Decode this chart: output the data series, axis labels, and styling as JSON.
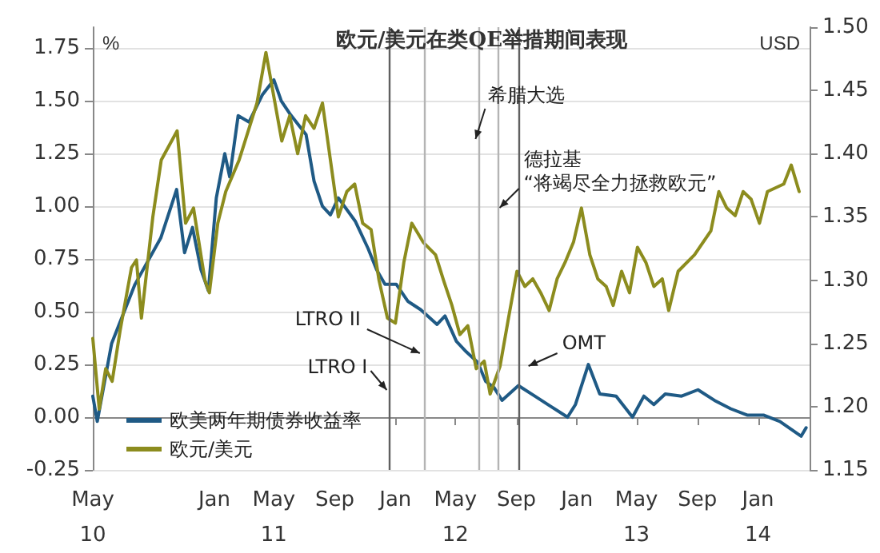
{
  "chart_data": {
    "type": "line",
    "title": "欧元/美元在类QE举措期间表现",
    "ylabel": "%",
    "y2label": "USD",
    "xlim": [
      "2010-05-01",
      "2014-04-15"
    ],
    "xticks": [
      {
        "value": "2010-05-01",
        "label": "May\n10"
      },
      {
        "value": "2011-01-01",
        "label": "Jan"
      },
      {
        "value": "2011-05-01",
        "label": "May\n11"
      },
      {
        "value": "2011-09-01",
        "label": "Sep"
      },
      {
        "value": "2012-01-01",
        "label": "Jan"
      },
      {
        "value": "2012-05-01",
        "label": "May\n12"
      },
      {
        "value": "2012-09-01",
        "label": "Sep"
      },
      {
        "value": "2013-01-01",
        "label": "Jan"
      },
      {
        "value": "2013-05-01",
        "label": "May\n13"
      },
      {
        "value": "2013-09-01",
        "label": "Sep"
      },
      {
        "value": "2014-01-01",
        "label": "Jan\n14"
      }
    ],
    "ylim": [
      -0.25,
      1.85
    ],
    "yticks": [
      {
        "value": -0.25,
        "label": "-0.25"
      },
      {
        "value": 0,
        "label": "0.00"
      },
      {
        "value": 0.25,
        "label": "0.25"
      },
      {
        "value": 0.5,
        "label": "0.50"
      },
      {
        "value": 0.75,
        "label": "0.75"
      },
      {
        "value": 1,
        "label": "1.00"
      },
      {
        "value": 1.25,
        "label": "1.25"
      },
      {
        "value": 1.5,
        "label": "1.50"
      },
      {
        "value": 1.75,
        "label": "1.75"
      }
    ],
    "y2lim": [
      1.15,
      1.5
    ],
    "y2ticks": [
      {
        "value": 1.15,
        "label": "1.15"
      },
      {
        "value": 1.2,
        "label": "1.20"
      },
      {
        "value": 1.25,
        "label": "1.25"
      },
      {
        "value": 1.3,
        "label": "1.30"
      },
      {
        "value": 1.35,
        "label": "1.35"
      },
      {
        "value": 1.4,
        "label": "1.40"
      },
      {
        "value": 1.45,
        "label": "1.45"
      },
      {
        "value": 1.5,
        "label": "1.50"
      }
    ],
    "grid": "y",
    "legend": "bottom left",
    "marker": "none",
    "line_style": "solid",
    "series": [
      {
        "name": "欧美两年期债券收益率",
        "color": "#1f5a85",
        "x": [
          "2010-05-01",
          "2010-05-10",
          "2010-06-08",
          "2010-07-25",
          "2010-09-15",
          "2010-10-17",
          "2010-11-02",
          "2010-11-18",
          "2010-12-05",
          "2010-12-20",
          "2011-01-05",
          "2011-01-22",
          "2011-02-01",
          "2011-02-18",
          "2011-03-12",
          "2011-04-08",
          "2011-05-01",
          "2011-05-16",
          "2011-06-02",
          "2011-07-05",
          "2011-07-21",
          "2011-08-07",
          "2011-08-23",
          "2011-09-08",
          "2011-10-12",
          "2011-11-07",
          "2011-11-24",
          "2011-12-11",
          "2012-01-03",
          "2012-01-26",
          "2012-02-21",
          "2012-03-25",
          "2012-04-10",
          "2012-05-03",
          "2012-05-23",
          "2012-06-15",
          "2012-07-01",
          "2012-07-18",
          "2012-08-03",
          "2012-09-05",
          "2012-10-08",
          "2012-11-10",
          "2012-12-13",
          "2012-12-29",
          "2013-01-24",
          "2013-02-16",
          "2013-03-21",
          "2013-04-23",
          "2013-05-16",
          "2013-06-05",
          "2013-06-28",
          "2013-07-31",
          "2013-09-02",
          "2013-10-05",
          "2013-11-07",
          "2013-12-10",
          "2014-01-12",
          "2014-02-14",
          "2014-03-29",
          "2014-04-08"
        ],
        "values": [
          0.1,
          -0.02,
          0.35,
          0.63,
          0.85,
          1.08,
          0.78,
          0.9,
          0.7,
          0.6,
          1.04,
          1.25,
          1.14,
          1.43,
          1.4,
          1.53,
          1.6,
          1.5,
          1.44,
          1.34,
          1.12,
          1.0,
          0.96,
          1.04,
          0.93,
          0.8,
          0.7,
          0.63,
          0.63,
          0.55,
          0.51,
          0.44,
          0.48,
          0.36,
          0.31,
          0.26,
          0.17,
          0.14,
          0.08,
          0.15,
          0.1,
          0.05,
          0.0,
          0.06,
          0.25,
          0.11,
          0.1,
          0.0,
          0.1,
          0.06,
          0.11,
          0.1,
          0.13,
          0.08,
          0.04,
          0.01,
          0.01,
          -0.02,
          -0.09,
          -0.05
        ]
      },
      {
        "name": "欧元/美元",
        "color": "#8c8c1e",
        "axis": "y2",
        "x": [
          "2010-05-01",
          "2010-05-14",
          "2010-05-27",
          "2010-06-09",
          "2010-06-25",
          "2010-07-18",
          "2010-07-28",
          "2010-08-07",
          "2010-08-30",
          "2010-09-16",
          "2010-10-18",
          "2010-11-04",
          "2010-11-20",
          "2010-12-13",
          "2010-12-22",
          "2011-01-08",
          "2011-01-24",
          "2011-02-20",
          "2011-03-12",
          "2011-03-28",
          "2011-04-15",
          "2011-05-01",
          "2011-05-17",
          "2011-06-02",
          "2011-06-18",
          "2011-07-04",
          "2011-07-21",
          "2011-08-07",
          "2011-08-23",
          "2011-09-08",
          "2011-09-25",
          "2011-10-11",
          "2011-10-27",
          "2011-11-13",
          "2011-11-29",
          "2011-12-16",
          "2012-01-01",
          "2012-01-18",
          "2012-02-03",
          "2012-02-26",
          "2012-03-22",
          "2012-04-07",
          "2012-04-24",
          "2012-05-10",
          "2012-05-26",
          "2012-06-12",
          "2012-06-28",
          "2012-07-10",
          "2012-07-30",
          "2012-08-16",
          "2012-09-02",
          "2012-09-18",
          "2012-10-04",
          "2012-10-20",
          "2012-11-06",
          "2012-11-22",
          "2012-12-08",
          "2012-12-25",
          "2013-01-10",
          "2013-01-27",
          "2013-02-12",
          "2013-03-01",
          "2013-03-15",
          "2013-04-01",
          "2013-04-17",
          "2013-05-03",
          "2013-05-20",
          "2013-06-05",
          "2013-06-22",
          "2013-07-05",
          "2013-07-24",
          "2013-08-26",
          "2013-09-28",
          "2013-10-14",
          "2013-10-30",
          "2013-11-16",
          "2013-12-02",
          "2013-12-18",
          "2014-01-04",
          "2014-01-20",
          "2014-02-22",
          "2014-03-09",
          "2014-03-25"
        ],
        "values": [
          1.254,
          1.198,
          1.23,
          1.22,
          1.26,
          1.31,
          1.316,
          1.27,
          1.35,
          1.395,
          1.418,
          1.345,
          1.357,
          1.3,
          1.29,
          1.345,
          1.37,
          1.395,
          1.42,
          1.44,
          1.48,
          1.445,
          1.41,
          1.43,
          1.4,
          1.43,
          1.42,
          1.44,
          1.395,
          1.35,
          1.37,
          1.376,
          1.345,
          1.34,
          1.3,
          1.27,
          1.266,
          1.314,
          1.345,
          1.33,
          1.32,
          1.3,
          1.28,
          1.257,
          1.264,
          1.23,
          1.236,
          1.21,
          1.232,
          1.27,
          1.307,
          1.295,
          1.301,
          1.29,
          1.276,
          1.301,
          1.314,
          1.33,
          1.357,
          1.32,
          1.301,
          1.295,
          1.28,
          1.307,
          1.29,
          1.326,
          1.314,
          1.295,
          1.301,
          1.276,
          1.307,
          1.32,
          1.339,
          1.37,
          1.357,
          1.351,
          1.37,
          1.364,
          1.345,
          1.37,
          1.376,
          1.391,
          1.37
        ]
      }
    ],
    "ref_lines": [
      {
        "axis": "x",
        "value": "2011-12-21",
        "label": "LTRO I",
        "color": "#606060"
      },
      {
        "axis": "x",
        "value": "2012-02-29",
        "label": "LTRO II",
        "color": "#b4b4b4"
      },
      {
        "axis": "x",
        "value": "2012-06-17",
        "label": "希腊大选",
        "color": "#b4b4b4"
      },
      {
        "axis": "x",
        "value": "2012-07-26",
        "label": "德拉基\n“将竭尽全力拯救欧元”",
        "color": "#b4b4b4"
      },
      {
        "axis": "x",
        "value": "2012-09-06",
        "label": "OMT",
        "color": "#606060"
      }
    ]
  }
}
